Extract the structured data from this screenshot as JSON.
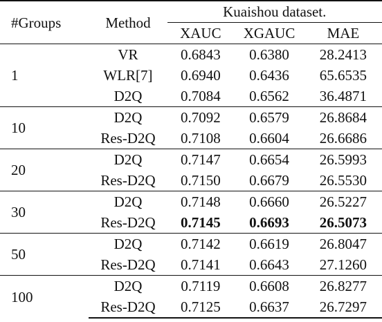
{
  "header": {
    "col_groups": "#Groups",
    "col_method": "Method",
    "dataset": "Kuaishou dataset.",
    "metrics": [
      "XAUC",
      "XGAUC",
      "MAE"
    ]
  },
  "blocks": [
    {
      "groups": "1",
      "rows": [
        {
          "method": "VR",
          "xauc": "0.6843",
          "xgauc": "0.6380",
          "mae": "28.2413"
        },
        {
          "method": "WLR[7]",
          "xauc": "0.6940",
          "xgauc": "0.6436",
          "mae": "65.6535"
        },
        {
          "method": "D2Q",
          "xauc": "0.7084",
          "xgauc": "0.6562",
          "mae": "36.4871"
        }
      ]
    },
    {
      "groups": "10",
      "rows": [
        {
          "method": "D2Q",
          "xauc": "0.7092",
          "xgauc": "0.6579",
          "mae": "26.8684"
        },
        {
          "method": "Res-D2Q",
          "xauc": "0.7108",
          "xgauc": "0.6604",
          "mae": "26.6686"
        }
      ]
    },
    {
      "groups": "20",
      "rows": [
        {
          "method": "D2Q",
          "xauc": "0.7147",
          "xgauc": "0.6654",
          "mae": "26.5993"
        },
        {
          "method": "Res-D2Q",
          "xauc": "0.7150",
          "xgauc": "0.6679",
          "mae": "26.5530"
        }
      ]
    },
    {
      "groups": "30",
      "rows": [
        {
          "method": "D2Q",
          "xauc": "0.7148",
          "xgauc": "0.6660",
          "mae": "26.5227"
        },
        {
          "method": "Res-D2Q",
          "xauc": "0.7145",
          "xgauc": "0.6693",
          "mae": "26.5073",
          "bold": true
        }
      ]
    },
    {
      "groups": "50",
      "rows": [
        {
          "method": "D2Q",
          "xauc": "0.7142",
          "xgauc": "0.6619",
          "mae": "26.8047"
        },
        {
          "method": "Res-D2Q",
          "xauc": "0.7141",
          "xgauc": "0.6643",
          "mae": "27.1260"
        }
      ]
    },
    {
      "groups": "100",
      "rows": [
        {
          "method": "D2Q",
          "xauc": "0.7119",
          "xgauc": "0.6608",
          "mae": "26.8277"
        },
        {
          "method": "Res-D2Q",
          "xauc": "0.7125",
          "xgauc": "0.6637",
          "mae": "26.7297"
        }
      ]
    }
  ]
}
